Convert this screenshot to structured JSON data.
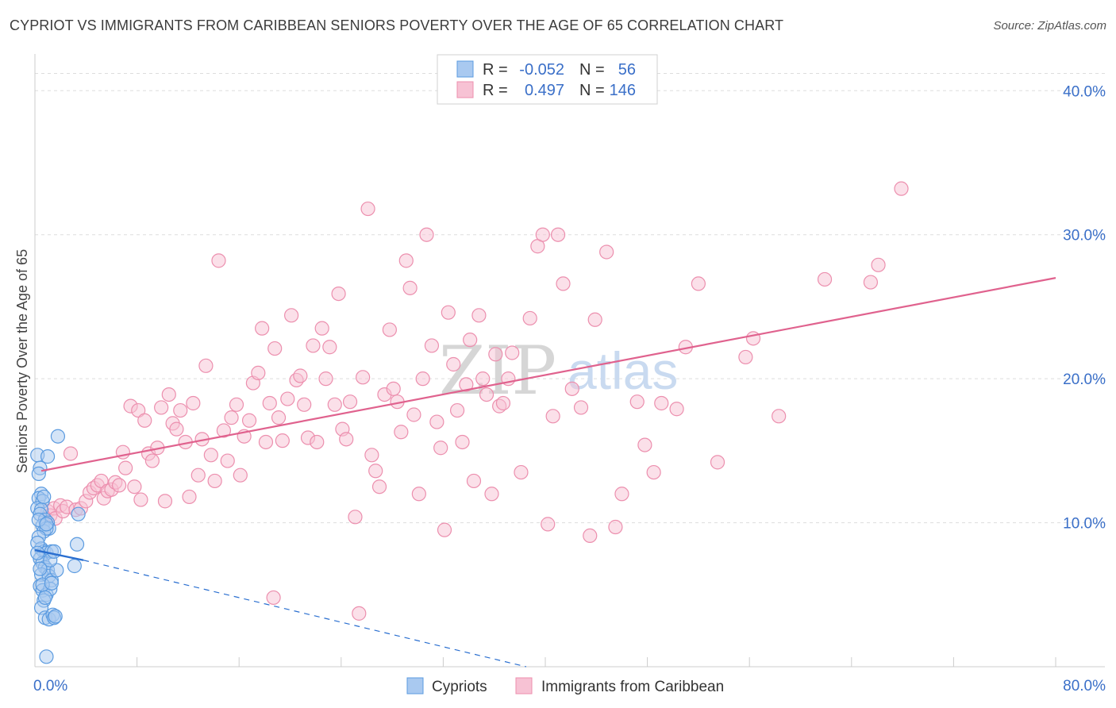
{
  "title": "CYPRIOT VS IMMIGRANTS FROM CARIBBEAN SENIORS POVERTY OVER THE AGE OF 65 CORRELATION CHART",
  "source": "Source: ZipAtlas.com",
  "watermark": {
    "zip": "ZIP",
    "atlas": "atlas"
  },
  "colors": {
    "blue": "#5b9be0",
    "blue_fill": "#a9c9f0",
    "blue_line": "#2a6fd0",
    "pink": "#ec8fae",
    "pink_fill": "#f7c2d4",
    "pink_line": "#e0628e",
    "grid": "#dddddd",
    "tick_text": "#3a6fc8"
  },
  "legend": {
    "rows": [
      {
        "r_label": "R =",
        "r_value": "-0.052",
        "n_label": "N =",
        "n_value": "56"
      },
      {
        "r_label": "R =",
        "r_value": "0.497",
        "n_label": "N =",
        "n_value": "146"
      }
    ]
  },
  "chart_data": {
    "type": "scatter",
    "title": "CYPRIOT VS IMMIGRANTS FROM CARIBBEAN SENIORS POVERTY OVER THE AGE OF 65 CORRELATION CHART",
    "xlabel": "",
    "ylabel": "Seniors Poverty Over the Age of 65",
    "xlim": [
      0,
      80
    ],
    "ylim": [
      0,
      42
    ],
    "x_tick_labels": [
      "0.0%",
      "80.0%"
    ],
    "y_ticks": [
      10,
      20,
      30,
      40
    ],
    "y_tick_labels": [
      "10.0%",
      "20.0%",
      "30.0%",
      "40.0%"
    ],
    "legend_position": "top-center",
    "series": [
      {
        "name": "Cypriots",
        "r": -0.052,
        "n": 56,
        "trend_solid": [
          [
            0.0,
            8.1
          ],
          [
            3.8,
            7.4
          ]
        ],
        "trend_dashed": [
          [
            3.8,
            7.4
          ],
          [
            38.5,
            0.0
          ]
        ],
        "points": [
          [
            0.2,
            14.7
          ],
          [
            0.4,
            13.8
          ],
          [
            0.3,
            13.4
          ],
          [
            0.5,
            12.0
          ],
          [
            0.3,
            11.7
          ],
          [
            0.6,
            11.5
          ],
          [
            0.2,
            11.0
          ],
          [
            0.5,
            10.9
          ],
          [
            0.4,
            10.6
          ],
          [
            0.8,
            10.2
          ],
          [
            1.0,
            10.0
          ],
          [
            0.6,
            9.8
          ],
          [
            1.1,
            9.6
          ],
          [
            0.7,
            9.4
          ],
          [
            0.9,
            9.6
          ],
          [
            0.3,
            9.0
          ],
          [
            0.5,
            8.2
          ],
          [
            0.7,
            8.0
          ],
          [
            0.9,
            7.9
          ],
          [
            1.3,
            8.0
          ],
          [
            0.4,
            7.5
          ],
          [
            0.6,
            7.2
          ],
          [
            0.8,
            6.9
          ],
          [
            1.0,
            6.7
          ],
          [
            0.5,
            6.4
          ],
          [
            1.1,
            6.3
          ],
          [
            1.3,
            6.0
          ],
          [
            0.4,
            5.6
          ],
          [
            0.6,
            5.3
          ],
          [
            0.9,
            5.0
          ],
          [
            1.2,
            5.4
          ],
          [
            0.7,
            4.6
          ],
          [
            0.5,
            4.1
          ],
          [
            0.8,
            3.4
          ],
          [
            1.1,
            3.3
          ],
          [
            1.4,
            3.6
          ],
          [
            1.5,
            3.4
          ],
          [
            1.6,
            3.5
          ],
          [
            0.9,
            0.7
          ],
          [
            1.8,
            16.0
          ],
          [
            1.0,
            14.6
          ],
          [
            3.4,
            10.6
          ],
          [
            3.3,
            8.5
          ],
          [
            3.1,
            7.0
          ],
          [
            1.7,
            6.7
          ],
          [
            0.2,
            8.6
          ],
          [
            0.3,
            10.2
          ],
          [
            0.7,
            11.8
          ],
          [
            1.2,
            7.4
          ],
          [
            0.6,
            5.7
          ],
          [
            0.4,
            6.8
          ],
          [
            1.5,
            8.0
          ],
          [
            0.9,
            9.9
          ],
          [
            1.3,
            5.8
          ],
          [
            0.2,
            7.9
          ],
          [
            0.8,
            4.8
          ]
        ]
      },
      {
        "name": "Immigrants from Caribbean",
        "r": 0.497,
        "n": 146,
        "trend_solid": [
          [
            0.5,
            13.6
          ],
          [
            80.0,
            27.0
          ]
        ],
        "points": [
          [
            0.8,
            10.2
          ],
          [
            1.0,
            10.8
          ],
          [
            1.2,
            10.5
          ],
          [
            1.5,
            11.0
          ],
          [
            1.6,
            10.3
          ],
          [
            2.0,
            11.2
          ],
          [
            2.2,
            10.8
          ],
          [
            2.5,
            11.1
          ],
          [
            2.8,
            14.8
          ],
          [
            3.2,
            10.9
          ],
          [
            3.6,
            11.0
          ],
          [
            4.0,
            11.5
          ],
          [
            4.3,
            12.1
          ],
          [
            4.6,
            12.4
          ],
          [
            4.9,
            12.6
          ],
          [
            5.2,
            12.9
          ],
          [
            5.4,
            11.7
          ],
          [
            5.7,
            12.2
          ],
          [
            6.0,
            12.3
          ],
          [
            6.3,
            12.8
          ],
          [
            6.6,
            12.6
          ],
          [
            6.9,
            14.9
          ],
          [
            7.1,
            13.8
          ],
          [
            7.5,
            18.1
          ],
          [
            7.8,
            12.5
          ],
          [
            8.1,
            17.8
          ],
          [
            8.3,
            11.6
          ],
          [
            8.6,
            17.1
          ],
          [
            8.9,
            14.8
          ],
          [
            9.2,
            14.3
          ],
          [
            9.6,
            15.2
          ],
          [
            9.9,
            18.0
          ],
          [
            10.2,
            11.5
          ],
          [
            10.5,
            18.9
          ],
          [
            10.8,
            16.9
          ],
          [
            11.1,
            16.5
          ],
          [
            11.4,
            17.8
          ],
          [
            11.8,
            15.6
          ],
          [
            12.1,
            11.8
          ],
          [
            12.4,
            18.3
          ],
          [
            12.8,
            13.3
          ],
          [
            13.1,
            15.8
          ],
          [
            13.4,
            20.9
          ],
          [
            13.8,
            14.7
          ],
          [
            14.1,
            12.9
          ],
          [
            14.4,
            28.2
          ],
          [
            14.8,
            16.4
          ],
          [
            15.1,
            14.3
          ],
          [
            15.4,
            17.3
          ],
          [
            15.8,
            18.2
          ],
          [
            16.1,
            13.3
          ],
          [
            16.4,
            16.0
          ],
          [
            16.8,
            17.1
          ],
          [
            17.1,
            19.7
          ],
          [
            17.5,
            20.4
          ],
          [
            17.8,
            23.5
          ],
          [
            18.1,
            15.6
          ],
          [
            18.4,
            18.3
          ],
          [
            18.8,
            22.1
          ],
          [
            19.1,
            17.3
          ],
          [
            19.4,
            15.7
          ],
          [
            19.8,
            18.6
          ],
          [
            20.1,
            24.4
          ],
          [
            20.5,
            19.9
          ],
          [
            20.8,
            20.2
          ],
          [
            21.1,
            18.2
          ],
          [
            21.4,
            15.9
          ],
          [
            21.8,
            22.3
          ],
          [
            22.1,
            15.6
          ],
          [
            22.5,
            23.5
          ],
          [
            22.8,
            20.0
          ],
          [
            23.1,
            22.2
          ],
          [
            23.5,
            18.2
          ],
          [
            23.8,
            25.9
          ],
          [
            24.1,
            16.5
          ],
          [
            24.4,
            15.8
          ],
          [
            24.7,
            18.4
          ],
          [
            25.1,
            10.4
          ],
          [
            25.4,
            3.7
          ],
          [
            25.7,
            20.1
          ],
          [
            26.1,
            31.8
          ],
          [
            26.4,
            14.7
          ],
          [
            26.7,
            13.6
          ],
          [
            27.0,
            12.5
          ],
          [
            27.4,
            18.9
          ],
          [
            27.8,
            23.4
          ],
          [
            28.1,
            19.3
          ],
          [
            28.4,
            18.4
          ],
          [
            28.7,
            16.3
          ],
          [
            29.1,
            28.2
          ],
          [
            29.4,
            26.3
          ],
          [
            29.7,
            17.5
          ],
          [
            30.1,
            12.0
          ],
          [
            30.4,
            20.0
          ],
          [
            30.7,
            30.0
          ],
          [
            31.1,
            22.3
          ],
          [
            31.5,
            17.0
          ],
          [
            31.8,
            15.2
          ],
          [
            32.1,
            9.5
          ],
          [
            32.4,
            24.6
          ],
          [
            32.8,
            21.0
          ],
          [
            33.1,
            17.8
          ],
          [
            33.5,
            15.6
          ],
          [
            33.8,
            19.6
          ],
          [
            34.1,
            22.7
          ],
          [
            34.4,
            12.9
          ],
          [
            34.8,
            24.4
          ],
          [
            35.1,
            20.0
          ],
          [
            35.4,
            18.9
          ],
          [
            35.8,
            12.0
          ],
          [
            36.1,
            21.7
          ],
          [
            36.4,
            18.1
          ],
          [
            36.7,
            18.3
          ],
          [
            37.1,
            20.0
          ],
          [
            37.4,
            21.8
          ],
          [
            38.1,
            13.5
          ],
          [
            38.8,
            24.2
          ],
          [
            39.4,
            29.2
          ],
          [
            39.8,
            30.0
          ],
          [
            40.2,
            9.9
          ],
          [
            40.6,
            17.4
          ],
          [
            41.0,
            30.0
          ],
          [
            41.4,
            26.6
          ],
          [
            42.1,
            19.3
          ],
          [
            42.8,
            18.0
          ],
          [
            43.5,
            9.1
          ],
          [
            43.9,
            24.1
          ],
          [
            44.8,
            28.8
          ],
          [
            45.5,
            9.7
          ],
          [
            46.0,
            12.0
          ],
          [
            47.2,
            18.4
          ],
          [
            47.8,
            15.4
          ],
          [
            48.5,
            13.5
          ],
          [
            49.1,
            18.3
          ],
          [
            50.3,
            17.9
          ],
          [
            51.0,
            22.2
          ],
          [
            52.0,
            26.6
          ],
          [
            53.5,
            14.2
          ],
          [
            55.7,
            21.5
          ],
          [
            56.3,
            22.8
          ],
          [
            58.3,
            17.4
          ],
          [
            61.9,
            26.9
          ],
          [
            65.5,
            26.7
          ],
          [
            66.1,
            27.9
          ],
          [
            67.9,
            33.2
          ],
          [
            18.7,
            4.8
          ]
        ]
      }
    ]
  },
  "bottom_legend": {
    "cypriots_label": "Cypriots",
    "caribbean_label": "Immigrants from Caribbean"
  }
}
